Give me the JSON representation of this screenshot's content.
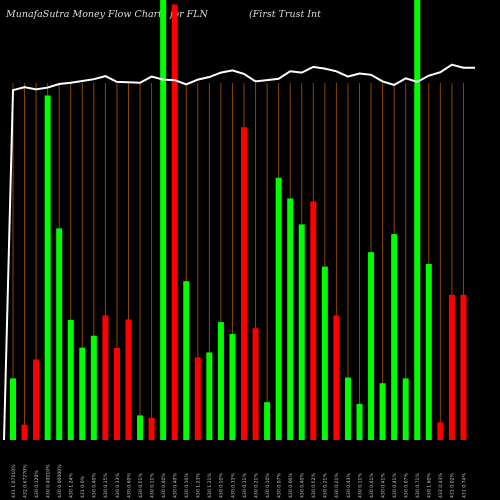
{
  "header": {
    "left_title": "MunafaSutra  Money Flow  Charts for FLN",
    "right_title": "(First Trust Int"
  },
  "colors": {
    "up": "#00ff00",
    "down": "#ff0000",
    "grid": "#8b4500",
    "line": "#ffffff",
    "background": "#000000"
  },
  "chart_data": {
    "type": "bar",
    "title": "MunafaSutra  Money Flow  Charts for FLN",
    "ylim": [
      0,
      100
    ],
    "grid": true,
    "bars": [
      {
        "label": "431 1.07010%",
        "value": 14.0,
        "color": "green"
      },
      {
        "label": "432 0.47270%",
        "value": 3.5,
        "color": "red"
      },
      {
        "label": "430 0.120%",
        "value": 18.3,
        "color": "red"
      },
      {
        "label": "430 0.40010%",
        "value": 78.3,
        "color": "green"
      },
      {
        "label": "430 0.00000%",
        "value": 48.1,
        "color": "green"
      },
      {
        "label": "430 1.24%",
        "value": 27.3,
        "color": "green"
      },
      {
        "label": "431 0.0%",
        "value": 21.0,
        "color": "green"
      },
      {
        "label": "430 0.40%",
        "value": 23.7,
        "color": "green"
      },
      {
        "label": "430 0.15%",
        "value": 28.3,
        "color": "red"
      },
      {
        "label": "430 0.33%",
        "value": 20.9,
        "color": "red"
      },
      {
        "label": "430 0.40%",
        "value": 27.4,
        "color": "red"
      },
      {
        "label": "430 0.51%",
        "value": 5.6,
        "color": "green"
      },
      {
        "label": "430 0.11%",
        "value": 5.0,
        "color": "red"
      },
      {
        "label": "430 0.40%",
        "value": 100,
        "color": "green"
      },
      {
        "label": "430 0.40%",
        "value": 99.0,
        "color": "red"
      },
      {
        "label": "430 0.10%",
        "value": 36.1,
        "color": "green"
      },
      {
        "label": "430 1.23%",
        "value": 18.8,
        "color": "red"
      },
      {
        "label": "430 1.21%",
        "value": 19.9,
        "color": "green"
      },
      {
        "label": "430 0.10%",
        "value": 26.8,
        "color": "green"
      },
      {
        "label": "430 0.33%",
        "value": 24.1,
        "color": "green"
      },
      {
        "label": "430 0.11%",
        "value": 71.1,
        "color": "red"
      },
      {
        "label": "430 0.21%",
        "value": 25.4,
        "color": "red"
      },
      {
        "label": "430 0.10%",
        "value": 8.6,
        "color": "green"
      },
      {
        "label": "430 0.07%",
        "value": 59.6,
        "color": "green"
      },
      {
        "label": "430 0.00%",
        "value": 54.9,
        "color": "green"
      },
      {
        "label": "430 0.40%",
        "value": 49.0,
        "color": "green"
      },
      {
        "label": "430 0.52%",
        "value": 54.2,
        "color": "red"
      },
      {
        "label": "430 0.21%",
        "value": 39.4,
        "color": "green"
      },
      {
        "label": "430 0.21%",
        "value": 28.3,
        "color": "red"
      },
      {
        "label": "430 0.43%",
        "value": 14.2,
        "color": "green"
      },
      {
        "label": "430 0.11%",
        "value": 8.2,
        "color": "green"
      },
      {
        "label": "430 0.41%",
        "value": 42.7,
        "color": "green"
      },
      {
        "label": "430 0.41%",
        "value": 12.9,
        "color": "green"
      },
      {
        "label": "430 0.41%",
        "value": 46.8,
        "color": "green"
      },
      {
        "label": "430 0.07%",
        "value": 14.0,
        "color": "green"
      },
      {
        "label": "430 0.71%",
        "value": 100,
        "color": "green"
      },
      {
        "label": "430 1.60%",
        "value": 40.0,
        "color": "green"
      },
      {
        "label": "432 0.43%",
        "value": 4.0,
        "color": "red"
      },
      {
        "label": "431 0.02%",
        "value": 33.0,
        "color": "red"
      },
      {
        "label": "431 0.74%",
        "value": 33.0,
        "color": "red"
      }
    ],
    "line_values": [
      0,
      79.5,
      80.2,
      79.7,
      80.1,
      80.9,
      81.2,
      81.6,
      82.0,
      82.7,
      81.4,
      81.3,
      81.2,
      82.6,
      81.9,
      81.8,
      80.8,
      81.9,
      82.5,
      83.5,
      84.0,
      83.2,
      81.5,
      81.8,
      82.1,
      83.8,
      83.5,
      84.8,
      84.4,
      83.8,
      82.6,
      83.3,
      83.0,
      81.5,
      80.7,
      82.2,
      81.4,
      82.8,
      83.6,
      85.3,
      84.6,
      84.6
    ]
  }
}
